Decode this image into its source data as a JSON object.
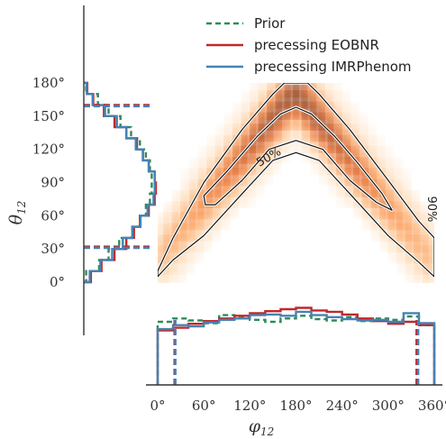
{
  "chart_data": {
    "type": "heatmap",
    "title": "",
    "xlabel": "φ",
    "xlabel_sub": "12",
    "ylabel": "θ",
    "ylabel_sub": "12",
    "xlim": [
      0,
      360
    ],
    "ylim": [
      0,
      180
    ],
    "x_ticks": [
      0,
      60,
      120,
      180,
      240,
      300,
      360
    ],
    "x_tick_labels": [
      "0°",
      "60°",
      "120°",
      "180°",
      "240°",
      "300°",
      "360°"
    ],
    "y_ticks": [
      0,
      30,
      60,
      90,
      120,
      150,
      180
    ],
    "y_tick_labels": [
      "0°",
      "30°",
      "60°",
      "90°",
      "120°",
      "150°",
      "180°"
    ],
    "colormap": [
      "#fff5eb",
      "#fdd0a2",
      "#fd8d3c",
      "#d94801",
      "#7f2704"
    ],
    "contours": [
      {
        "label": "50%",
        "points": [
          [
            60,
            78
          ],
          [
            90,
            100
          ],
          [
            130,
            132
          ],
          [
            160,
            152
          ],
          [
            180,
            158
          ],
          [
            200,
            152
          ],
          [
            230,
            132
          ],
          [
            260,
            108
          ],
          [
            292,
            80
          ],
          [
            305,
            65
          ],
          [
            285,
            72
          ],
          [
            250,
            92
          ],
          [
            215,
            120
          ],
          [
            180,
            128
          ],
          [
            145,
            120
          ],
          [
            110,
            92
          ],
          [
            75,
            70
          ],
          [
            62,
            70
          ]
        ]
      },
      {
        "label": "90%",
        "points": [
          [
            0,
            10
          ],
          [
            20,
            40
          ],
          [
            60,
            90
          ],
          [
            110,
            138
          ],
          [
            150,
            170
          ],
          [
            165,
            180
          ],
          [
            195,
            180
          ],
          [
            210,
            170
          ],
          [
            250,
            138
          ],
          [
            300,
            92
          ],
          [
            340,
            55
          ],
          [
            360,
            40
          ],
          [
            360,
            5
          ],
          [
            340,
            18
          ],
          [
            300,
            42
          ],
          [
            250,
            80
          ],
          [
            210,
            110
          ],
          [
            180,
            117
          ],
          [
            150,
            110
          ],
          [
            110,
            80
          ],
          [
            60,
            42
          ],
          [
            20,
            20
          ],
          [
            0,
            5
          ]
        ]
      }
    ],
    "density_modes": [
      {
        "x": 180,
        "y": 141
      }
    ],
    "legend": {
      "placement": "top-right",
      "entries": [
        {
          "name": "Prior",
          "color": "#2e8b57",
          "style": "dashed"
        },
        {
          "name": "precessing EOBNR",
          "color": "#c0282d",
          "style": "solid"
        },
        {
          "name": "precessing IMRPhenom",
          "color": "#4682b4",
          "style": "solid"
        }
      ]
    },
    "marginal_x": {
      "bin_edges": [
        0,
        20,
        40,
        60,
        80,
        100,
        120,
        140,
        160,
        180,
        200,
        220,
        240,
        260,
        280,
        300,
        320,
        340,
        360
      ],
      "series": [
        {
          "name": "Prior",
          "color": "#2e8b57",
          "style": "dashed",
          "density": [
            0.95,
            1.0,
            0.97,
            0.93,
            1.05,
            1.02,
            0.98,
            0.95,
            1.0,
            1.04,
            0.99,
            0.97,
            1.02,
            0.96,
            1.0,
            0.98,
            1.03,
            0.9
          ]
        },
        {
          "name": "precessing EOBNR",
          "color": "#c0282d",
          "style": "solid",
          "density": [
            0.82,
            0.86,
            0.92,
            0.96,
            1.0,
            1.04,
            1.08,
            1.11,
            1.14,
            1.16,
            1.12,
            1.1,
            1.06,
            1.0,
            0.96,
            0.92,
            0.95,
            0.9
          ]
        },
        {
          "name": "precessing IMRPhenom",
          "color": "#4682b4",
          "style": "solid",
          "density": [
            0.84,
            0.9,
            0.88,
            0.94,
            0.98,
            1.0,
            1.05,
            1.06,
            1.04,
            1.1,
            1.05,
            1.02,
            0.99,
            0.97,
            0.98,
            0.95,
            1.08,
            0.93
          ]
        }
      ],
      "credible_lines": [
        {
          "name": "precessing EOBNR",
          "color": "#c0282d",
          "values": [
            22,
            337
          ]
        },
        {
          "name": "precessing IMRPhenom",
          "color": "#4682b4",
          "values": [
            23,
            339
          ]
        }
      ]
    },
    "marginal_y": {
      "bin_edges": [
        0,
        10,
        20,
        30,
        40,
        50,
        60,
        70,
        80,
        90,
        100,
        110,
        120,
        130,
        140,
        150,
        160,
        170,
        180
      ],
      "series": [
        {
          "name": "Prior",
          "color": "#2e8b57",
          "style": "dashed",
          "density": [
            0.04,
            0.26,
            0.42,
            0.6,
            0.82,
            0.95,
            1.05,
            1.12,
            1.15,
            1.15,
            1.12,
            1.05,
            0.95,
            0.8,
            0.62,
            0.42,
            0.24,
            0.04
          ]
        },
        {
          "name": "precessing EOBNR",
          "color": "#c0282d",
          "style": "solid",
          "density": [
            0.12,
            0.3,
            0.52,
            0.72,
            0.85,
            0.95,
            1.1,
            1.2,
            1.22,
            1.2,
            1.1,
            1.0,
            0.9,
            0.72,
            0.52,
            0.34,
            0.16,
            0.06
          ]
        },
        {
          "name": "precessing IMRPhenom",
          "color": "#4682b4",
          "style": "solid",
          "density": [
            0.1,
            0.28,
            0.48,
            0.66,
            0.82,
            0.96,
            1.08,
            1.18,
            1.2,
            1.2,
            1.1,
            1.0,
            0.88,
            0.72,
            0.56,
            0.36,
            0.15,
            0.05
          ]
        }
      ],
      "credible_lines": [
        {
          "name": "precessing EOBNR",
          "color": "#c0282d",
          "values": [
            32,
            160
          ]
        },
        {
          "name": "precessing IMRPhenom",
          "color": "#4682b4",
          "values": [
            31,
            159
          ]
        }
      ]
    }
  }
}
